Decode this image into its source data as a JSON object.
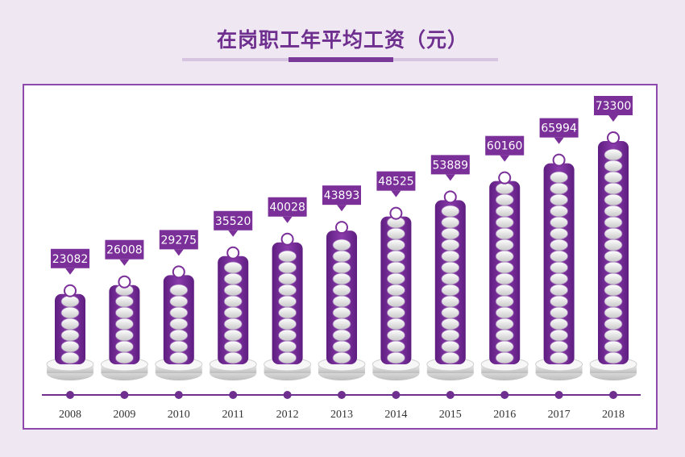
{
  "title": "在岗职工年平均工资（元）",
  "colors": {
    "bar": "#8a3cab",
    "bar_dark": "#5e1d80",
    "label_bg": "#7a2f99",
    "accent": "#6e2f8e",
    "axis": "#6e2f8e"
  },
  "chart_data": {
    "type": "bar",
    "title": "在岗职工年平均工资（元）",
    "xlabel": "",
    "ylabel": "",
    "categories": [
      "2008",
      "2009",
      "2010",
      "2011",
      "2012",
      "2013",
      "2014",
      "2015",
      "2016",
      "2017",
      "2018"
    ],
    "values": [
      23082,
      26008,
      29275,
      35520,
      40028,
      43893,
      48525,
      53889,
      60160,
      65994,
      73300
    ],
    "value_labels": [
      "23082",
      "26008",
      "29275",
      "35520",
      "40028",
      "43893",
      "48525",
      "53889",
      "60160",
      "65994",
      "73300"
    ],
    "grid": false,
    "legend": "none"
  }
}
